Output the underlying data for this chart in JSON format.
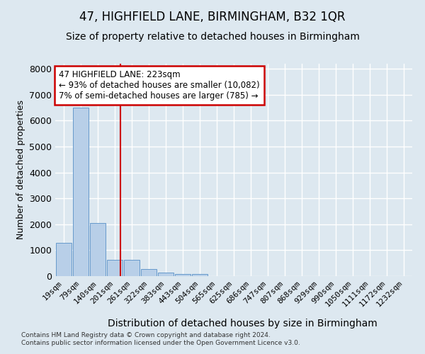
{
  "title": "47, HIGHFIELD LANE, BIRMINGHAM, B32 1QR",
  "subtitle": "Size of property relative to detached houses in Birmingham",
  "xlabel": "Distribution of detached houses by size in Birmingham",
  "ylabel": "Number of detached properties",
  "footnote1": "Contains HM Land Registry data © Crown copyright and database right 2024.",
  "footnote2": "Contains public sector information licensed under the Open Government Licence v3.0.",
  "bin_labels": [
    "19sqm",
    "79sqm",
    "140sqm",
    "201sqm",
    "261sqm",
    "322sqm",
    "383sqm",
    "443sqm",
    "504sqm",
    "565sqm",
    "625sqm",
    "686sqm",
    "747sqm",
    "807sqm",
    "868sqm",
    "929sqm",
    "990sqm",
    "1050sqm",
    "1111sqm",
    "1172sqm",
    "1232sqm"
  ],
  "bar_values": [
    1280,
    6500,
    2050,
    620,
    620,
    280,
    140,
    80,
    70,
    0,
    0,
    0,
    0,
    0,
    0,
    0,
    0,
    0,
    0,
    0,
    0
  ],
  "bar_color": "#b8cfe8",
  "bar_edge_color": "#6699cc",
  "vline_color": "#cc0000",
  "annotation_text": "47 HIGHFIELD LANE: 223sqm\n← 93% of detached houses are smaller (10,082)\n7% of semi-detached houses are larger (785) →",
  "annotation_box_color": "#ffffff",
  "annotation_box_edge": "#cc0000",
  "ylim": [
    0,
    8200
  ],
  "yticks": [
    0,
    1000,
    2000,
    3000,
    4000,
    5000,
    6000,
    7000,
    8000
  ],
  "bg_color": "#dde8f0",
  "plot_bg_color": "#dde8f0",
  "title_fontsize": 12,
  "subtitle_fontsize": 10,
  "grid_color": "#ffffff",
  "ylabel_fontsize": 9,
  "xlabel_fontsize": 10,
  "tick_fontsize": 8
}
